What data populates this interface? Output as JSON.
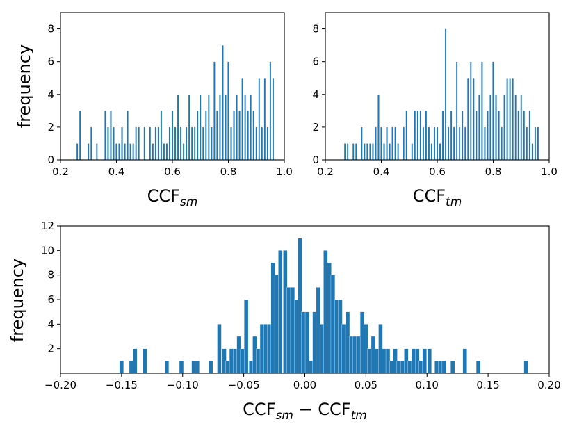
{
  "chart_data": [
    {
      "type": "bar",
      "xlabel": {
        "main": "CCF",
        "sub": "sm"
      },
      "ylabel": "frequency",
      "xlim": [
        0.2,
        1.0
      ],
      "ylim": [
        0,
        9
      ],
      "xticks": [
        "0.2",
        "0.4",
        "0.6",
        "0.8",
        "1.0"
      ],
      "yticks": [
        "0",
        "2",
        "4",
        "6",
        "8"
      ],
      "bin_width": 0.00575,
      "bins": [
        {
          "x": 0.26,
          "v": 1
        },
        {
          "x": 0.27,
          "v": 3
        },
        {
          "x": 0.3,
          "v": 1
        },
        {
          "x": 0.31,
          "v": 2
        },
        {
          "x": 0.33,
          "v": 1
        },
        {
          "x": 0.36,
          "v": 3
        },
        {
          "x": 0.37,
          "v": 2
        },
        {
          "x": 0.38,
          "v": 3
        },
        {
          "x": 0.39,
          "v": 2
        },
        {
          "x": 0.4,
          "v": 1
        },
        {
          "x": 0.41,
          "v": 1
        },
        {
          "x": 0.42,
          "v": 2
        },
        {
          "x": 0.43,
          "v": 1
        },
        {
          "x": 0.44,
          "v": 3
        },
        {
          "x": 0.45,
          "v": 1
        },
        {
          "x": 0.46,
          "v": 1
        },
        {
          "x": 0.47,
          "v": 2
        },
        {
          "x": 0.48,
          "v": 2
        },
        {
          "x": 0.5,
          "v": 2
        },
        {
          "x": 0.52,
          "v": 2
        },
        {
          "x": 0.53,
          "v": 1
        },
        {
          "x": 0.54,
          "v": 2
        },
        {
          "x": 0.55,
          "v": 2
        },
        {
          "x": 0.56,
          "v": 3
        },
        {
          "x": 0.57,
          "v": 1
        },
        {
          "x": 0.58,
          "v": 1
        },
        {
          "x": 0.59,
          "v": 2
        },
        {
          "x": 0.6,
          "v": 3
        },
        {
          "x": 0.61,
          "v": 2
        },
        {
          "x": 0.62,
          "v": 4
        },
        {
          "x": 0.63,
          "v": 2
        },
        {
          "x": 0.64,
          "v": 1
        },
        {
          "x": 0.65,
          "v": 2
        },
        {
          "x": 0.66,
          "v": 4
        },
        {
          "x": 0.67,
          "v": 2
        },
        {
          "x": 0.68,
          "v": 2
        },
        {
          "x": 0.69,
          "v": 3
        },
        {
          "x": 0.7,
          "v": 4
        },
        {
          "x": 0.71,
          "v": 2
        },
        {
          "x": 0.72,
          "v": 3
        },
        {
          "x": 0.73,
          "v": 4
        },
        {
          "x": 0.74,
          "v": 2
        },
        {
          "x": 0.75,
          "v": 6
        },
        {
          "x": 0.76,
          "v": 3
        },
        {
          "x": 0.77,
          "v": 4
        },
        {
          "x": 0.78,
          "v": 7
        },
        {
          "x": 0.79,
          "v": 4
        },
        {
          "x": 0.8,
          "v": 6
        },
        {
          "x": 0.81,
          "v": 2
        },
        {
          "x": 0.82,
          "v": 3
        },
        {
          "x": 0.83,
          "v": 4
        },
        {
          "x": 0.84,
          "v": 3
        },
        {
          "x": 0.85,
          "v": 5
        },
        {
          "x": 0.86,
          "v": 4
        },
        {
          "x": 0.87,
          "v": 3
        },
        {
          "x": 0.88,
          "v": 4
        },
        {
          "x": 0.89,
          "v": 3
        },
        {
          "x": 0.9,
          "v": 2
        },
        {
          "x": 0.91,
          "v": 5
        },
        {
          "x": 0.92,
          "v": 2
        },
        {
          "x": 0.93,
          "v": 5
        },
        {
          "x": 0.94,
          "v": 2
        },
        {
          "x": 0.95,
          "v": 6
        },
        {
          "x": 0.96,
          "v": 5
        }
      ]
    },
    {
      "type": "bar",
      "xlabel": {
        "main": "CCF",
        "sub": "tm"
      },
      "ylabel": "",
      "xlim": [
        0.2,
        1.0
      ],
      "ylim": [
        0,
        9
      ],
      "xticks": [
        "0.2",
        "0.4",
        "0.6",
        "0.8",
        "1.0"
      ],
      "yticks": [
        "0",
        "2",
        "4",
        "6",
        "8"
      ],
      "bin_width": 0.00575,
      "bins": [
        {
          "x": 0.27,
          "v": 1
        },
        {
          "x": 0.28,
          "v": 1
        },
        {
          "x": 0.3,
          "v": 1
        },
        {
          "x": 0.31,
          "v": 1
        },
        {
          "x": 0.33,
          "v": 2
        },
        {
          "x": 0.34,
          "v": 1
        },
        {
          "x": 0.35,
          "v": 1
        },
        {
          "x": 0.36,
          "v": 1
        },
        {
          "x": 0.37,
          "v": 1
        },
        {
          "x": 0.38,
          "v": 2
        },
        {
          "x": 0.39,
          "v": 4
        },
        {
          "x": 0.4,
          "v": 2
        },
        {
          "x": 0.41,
          "v": 1
        },
        {
          "x": 0.42,
          "v": 2
        },
        {
          "x": 0.43,
          "v": 1
        },
        {
          "x": 0.44,
          "v": 2
        },
        {
          "x": 0.45,
          "v": 2
        },
        {
          "x": 0.46,
          "v": 1
        },
        {
          "x": 0.48,
          "v": 2
        },
        {
          "x": 0.49,
          "v": 3
        },
        {
          "x": 0.51,
          "v": 1
        },
        {
          "x": 0.52,
          "v": 3
        },
        {
          "x": 0.53,
          "v": 3
        },
        {
          "x": 0.54,
          "v": 3
        },
        {
          "x": 0.55,
          "v": 2
        },
        {
          "x": 0.56,
          "v": 3
        },
        {
          "x": 0.57,
          "v": 2
        },
        {
          "x": 0.58,
          "v": 1
        },
        {
          "x": 0.59,
          "v": 2
        },
        {
          "x": 0.6,
          "v": 2
        },
        {
          "x": 0.61,
          "v": 1
        },
        {
          "x": 0.62,
          "v": 3
        },
        {
          "x": 0.63,
          "v": 8
        },
        {
          "x": 0.64,
          "v": 2
        },
        {
          "x": 0.65,
          "v": 3
        },
        {
          "x": 0.66,
          "v": 2
        },
        {
          "x": 0.67,
          "v": 6
        },
        {
          "x": 0.68,
          "v": 2
        },
        {
          "x": 0.69,
          "v": 3
        },
        {
          "x": 0.7,
          "v": 2
        },
        {
          "x": 0.71,
          "v": 5
        },
        {
          "x": 0.72,
          "v": 6
        },
        {
          "x": 0.73,
          "v": 5
        },
        {
          "x": 0.74,
          "v": 3
        },
        {
          "x": 0.75,
          "v": 4
        },
        {
          "x": 0.76,
          "v": 6
        },
        {
          "x": 0.77,
          "v": 2
        },
        {
          "x": 0.78,
          "v": 3
        },
        {
          "x": 0.79,
          "v": 4
        },
        {
          "x": 0.8,
          "v": 6
        },
        {
          "x": 0.81,
          "v": 4
        },
        {
          "x": 0.82,
          "v": 3
        },
        {
          "x": 0.83,
          "v": 2
        },
        {
          "x": 0.84,
          "v": 4
        },
        {
          "x": 0.85,
          "v": 5
        },
        {
          "x": 0.86,
          "v": 5
        },
        {
          "x": 0.87,
          "v": 5
        },
        {
          "x": 0.88,
          "v": 4
        },
        {
          "x": 0.89,
          "v": 3
        },
        {
          "x": 0.9,
          "v": 4
        },
        {
          "x": 0.91,
          "v": 3
        },
        {
          "x": 0.92,
          "v": 2
        },
        {
          "x": 0.93,
          "v": 3
        },
        {
          "x": 0.94,
          "v": 1
        },
        {
          "x": 0.95,
          "v": 2
        },
        {
          "x": 0.96,
          "v": 2
        }
      ]
    },
    {
      "type": "bar",
      "xlabel": {
        "main": "CCF",
        "sub": "sm",
        "op": " − ",
        "main2": "CCF",
        "sub2": "tm"
      },
      "ylabel": "frequency",
      "xlim": [
        -0.2,
        0.2
      ],
      "ylim": [
        0,
        12
      ],
      "xticks": [
        "−0.20",
        "−0.15",
        "−0.10",
        "−0.05",
        "0.00",
        "0.05",
        "0.10",
        "0.15",
        "0.20"
      ],
      "yticks": [
        "2",
        "4",
        "6",
        "8",
        "10",
        "12"
      ],
      "bin_width": 0.00338,
      "bins": [
        {
          "x": -0.15,
          "v": 1
        },
        {
          "x": -0.142,
          "v": 1
        },
        {
          "x": -0.139,
          "v": 2
        },
        {
          "x": -0.131,
          "v": 2
        },
        {
          "x": -0.113,
          "v": 1
        },
        {
          "x": -0.101,
          "v": 1
        },
        {
          "x": -0.091,
          "v": 1
        },
        {
          "x": -0.088,
          "v": 1
        },
        {
          "x": -0.077,
          "v": 1
        },
        {
          "x": -0.07,
          "v": 4
        },
        {
          "x": -0.066,
          "v": 2
        },
        {
          "x": -0.063,
          "v": 1
        },
        {
          "x": -0.06,
          "v": 2
        },
        {
          "x": -0.057,
          "v": 2
        },
        {
          "x": -0.054,
          "v": 3
        },
        {
          "x": -0.051,
          "v": 2
        },
        {
          "x": -0.048,
          "v": 6
        },
        {
          "x": -0.044,
          "v": 1
        },
        {
          "x": -0.041,
          "v": 3
        },
        {
          "x": -0.038,
          "v": 2
        },
        {
          "x": -0.035,
          "v": 4
        },
        {
          "x": -0.032,
          "v": 4
        },
        {
          "x": -0.029,
          "v": 4
        },
        {
          "x": -0.026,
          "v": 9
        },
        {
          "x": -0.023,
          "v": 8
        },
        {
          "x": -0.02,
          "v": 10
        },
        {
          "x": -0.016,
          "v": 10
        },
        {
          "x": -0.013,
          "v": 7
        },
        {
          "x": -0.01,
          "v": 7
        },
        {
          "x": -0.007,
          "v": 6
        },
        {
          "x": -0.004,
          "v": 11
        },
        {
          "x": -0.001,
          "v": 5
        },
        {
          "x": 0.002,
          "v": 5
        },
        {
          "x": 0.005,
          "v": 1
        },
        {
          "x": 0.008,
          "v": 5
        },
        {
          "x": 0.011,
          "v": 7
        },
        {
          "x": 0.014,
          "v": 4
        },
        {
          "x": 0.017,
          "v": 10
        },
        {
          "x": 0.02,
          "v": 9
        },
        {
          "x": 0.023,
          "v": 8
        },
        {
          "x": 0.026,
          "v": 6
        },
        {
          "x": 0.029,
          "v": 6
        },
        {
          "x": 0.032,
          "v": 4
        },
        {
          "x": 0.035,
          "v": 5
        },
        {
          "x": 0.038,
          "v": 3
        },
        {
          "x": 0.041,
          "v": 3
        },
        {
          "x": 0.044,
          "v": 3
        },
        {
          "x": 0.047,
          "v": 5
        },
        {
          "x": 0.05,
          "v": 4
        },
        {
          "x": 0.053,
          "v": 2
        },
        {
          "x": 0.056,
          "v": 3
        },
        {
          "x": 0.059,
          "v": 2
        },
        {
          "x": 0.062,
          "v": 4
        },
        {
          "x": 0.065,
          "v": 2
        },
        {
          "x": 0.068,
          "v": 2
        },
        {
          "x": 0.071,
          "v": 1
        },
        {
          "x": 0.074,
          "v": 2
        },
        {
          "x": 0.077,
          "v": 1
        },
        {
          "x": 0.08,
          "v": 1
        },
        {
          "x": 0.083,
          "v": 2
        },
        {
          "x": 0.086,
          "v": 1
        },
        {
          "x": 0.089,
          "v": 2
        },
        {
          "x": 0.092,
          "v": 2
        },
        {
          "x": 0.095,
          "v": 1
        },
        {
          "x": 0.098,
          "v": 2
        },
        {
          "x": 0.102,
          "v": 2
        },
        {
          "x": 0.108,
          "v": 1
        },
        {
          "x": 0.111,
          "v": 1
        },
        {
          "x": 0.114,
          "v": 1
        },
        {
          "x": 0.121,
          "v": 1
        },
        {
          "x": 0.131,
          "v": 2
        },
        {
          "x": 0.142,
          "v": 1
        },
        {
          "x": 0.181,
          "v": 1
        }
      ]
    }
  ]
}
